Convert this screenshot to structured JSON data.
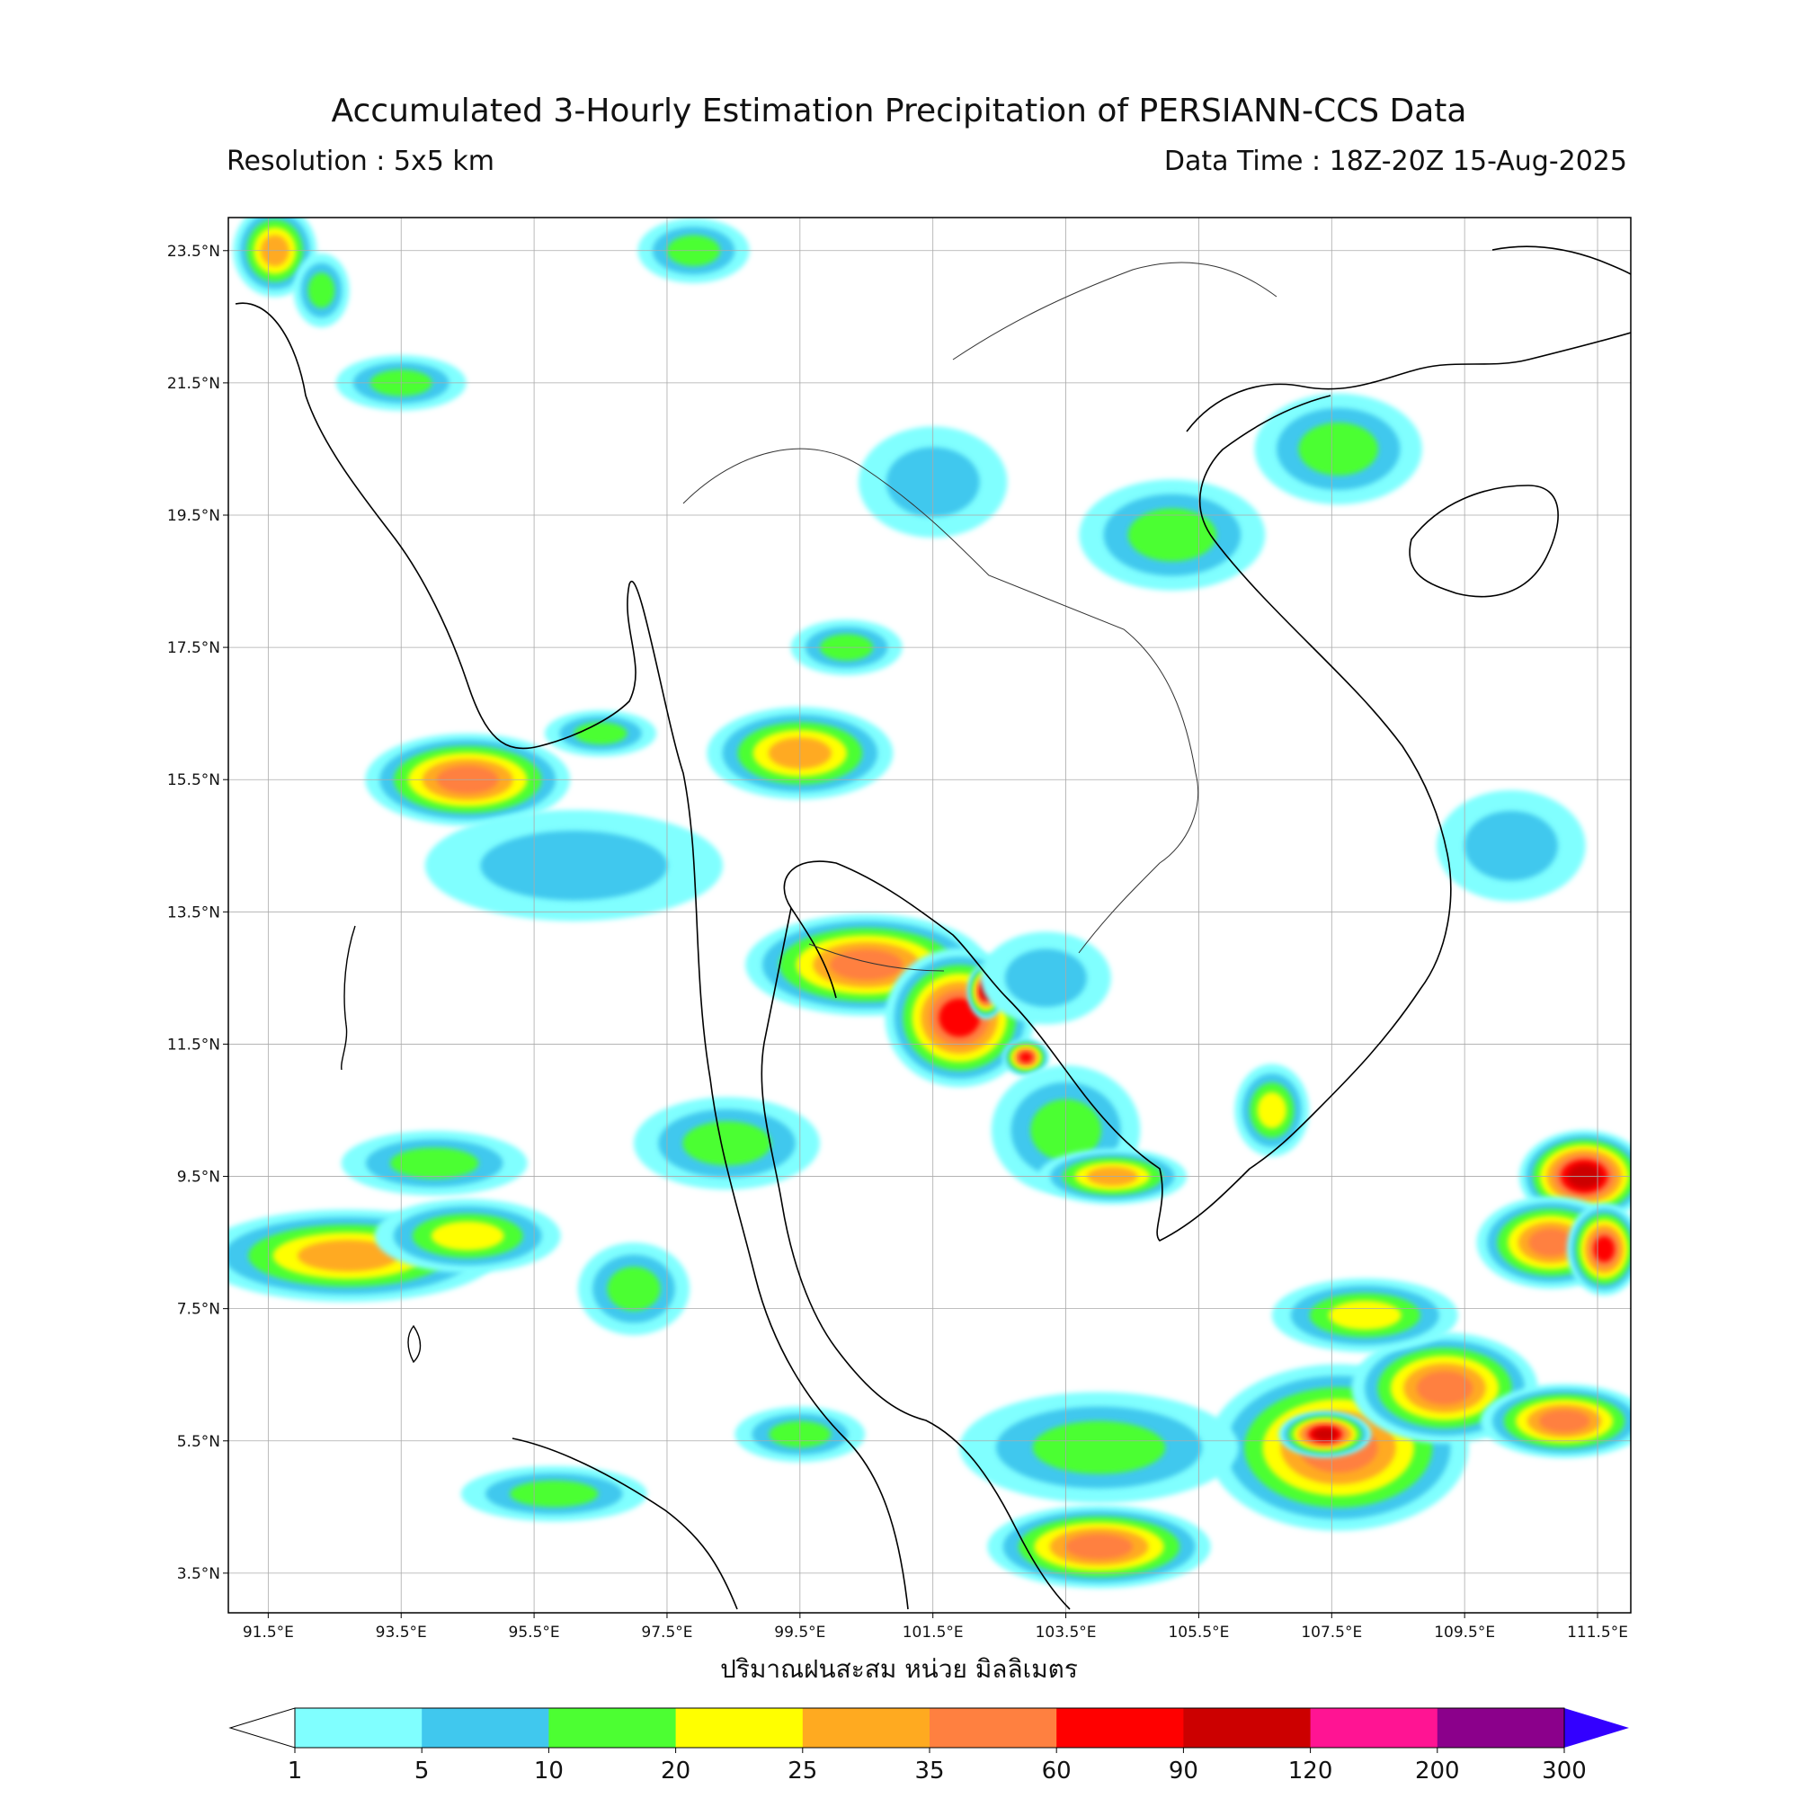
{
  "header": {
    "title": "Accumulated 3-Hourly Estimation Precipitation of PERSIANN-CCS Data",
    "resolution": "Resolution : 5x5 km",
    "data_time": "Data Time : 18Z-20Z 15-Aug-2025"
  },
  "map": {
    "lon_range": [
      90.9,
      112.0
    ],
    "lat_range": [
      2.9,
      24.0
    ],
    "lat_ticks": [
      {
        "value": 23.5,
        "label": "23.5°N"
      },
      {
        "value": 21.5,
        "label": "21.5°N"
      },
      {
        "value": 19.5,
        "label": "19.5°N"
      },
      {
        "value": 17.5,
        "label": "17.5°N"
      },
      {
        "value": 15.5,
        "label": "15.5°N"
      },
      {
        "value": 13.5,
        "label": "13.5°N"
      },
      {
        "value": 11.5,
        "label": "11.5°N"
      },
      {
        "value": 9.5,
        "label": "9.5°N"
      },
      {
        "value": 7.5,
        "label": "7.5°N"
      },
      {
        "value": 5.5,
        "label": "5.5°N"
      },
      {
        "value": 3.5,
        "label": "3.5°N"
      }
    ],
    "lon_ticks": [
      {
        "value": 91.5,
        "label": "91.5°E"
      },
      {
        "value": 93.5,
        "label": "93.5°E"
      },
      {
        "value": 95.5,
        "label": "95.5°E"
      },
      {
        "value": 97.5,
        "label": "97.5°E"
      },
      {
        "value": 99.5,
        "label": "99.5°E"
      },
      {
        "value": 101.5,
        "label": "101.5°E"
      },
      {
        "value": 103.5,
        "label": "103.5°E"
      },
      {
        "value": 105.5,
        "label": "105.5°E"
      },
      {
        "value": 107.5,
        "label": "107.5°E"
      },
      {
        "value": 109.5,
        "label": "109.5°E"
      },
      {
        "value": 111.5,
        "label": "111.5°E"
      }
    ],
    "grid": true
  },
  "x_axis_title": "ปริมาณฝนสะสม หน่วย มิลลิเมตร",
  "colorbar": {
    "levels": [
      "1",
      "5",
      "10",
      "20",
      "25",
      "35",
      "60",
      "90",
      "120",
      "200",
      "300"
    ],
    "colors": [
      "#80ffff",
      "#40c8ee",
      "#4cff32",
      "#ffff00",
      "#ffaa20",
      "#ff8040",
      "#ff0000",
      "#cc0000",
      "#ff1493",
      "#8b008b"
    ],
    "under_color": "#ffffff",
    "over_color": "#3300ff"
  },
  "rain_cells": [
    {
      "lon": 91.6,
      "lat": 23.5,
      "rx": 0.45,
      "ry": 0.5,
      "level": 4
    },
    {
      "lon": 92.3,
      "lat": 22.9,
      "rx": 0.3,
      "ry": 0.4,
      "level": 2
    },
    {
      "lon": 97.9,
      "lat": 23.5,
      "rx": 0.6,
      "ry": 0.35,
      "level": 2
    },
    {
      "lon": 93.5,
      "lat": 21.5,
      "rx": 0.7,
      "ry": 0.3,
      "level": 2
    },
    {
      "lon": 94.5,
      "lat": 15.5,
      "rx": 1.1,
      "ry": 0.5,
      "level": 5
    },
    {
      "lon": 96.5,
      "lat": 16.2,
      "rx": 0.6,
      "ry": 0.25,
      "level": 2
    },
    {
      "lon": 99.5,
      "lat": 15.9,
      "rx": 1.0,
      "ry": 0.5,
      "level": 4
    },
    {
      "lon": 100.5,
      "lat": 12.7,
      "rx": 1.3,
      "ry": 0.55,
      "level": 5
    },
    {
      "lon": 101.9,
      "lat": 11.9,
      "rx": 0.8,
      "ry": 0.75,
      "level": 6
    },
    {
      "lon": 102.3,
      "lat": 12.3,
      "rx": 0.2,
      "ry": 0.3,
      "level": 7
    },
    {
      "lon": 102.9,
      "lat": 11.3,
      "rx": 0.25,
      "ry": 0.2,
      "level": 6
    },
    {
      "lon": 103.2,
      "lat": 12.5,
      "rx": 0.7,
      "ry": 0.5,
      "level": 1
    },
    {
      "lon": 105.1,
      "lat": 19.2,
      "rx": 1.0,
      "ry": 0.6,
      "level": 2
    },
    {
      "lon": 107.6,
      "lat": 20.5,
      "rx": 0.9,
      "ry": 0.6,
      "level": 2
    },
    {
      "lon": 111.3,
      "lat": 9.5,
      "rx": 0.7,
      "ry": 0.5,
      "level": 7
    },
    {
      "lon": 110.8,
      "lat": 8.5,
      "rx": 0.8,
      "ry": 0.5,
      "level": 5
    },
    {
      "lon": 111.6,
      "lat": 8.4,
      "rx": 0.4,
      "ry": 0.5,
      "level": 6
    },
    {
      "lon": 107.6,
      "lat": 5.4,
      "rx": 1.4,
      "ry": 0.9,
      "level": 5
    },
    {
      "lon": 107.4,
      "lat": 5.6,
      "rx": 0.5,
      "ry": 0.25,
      "level": 7
    },
    {
      "lon": 109.2,
      "lat": 6.3,
      "rx": 1.0,
      "ry": 0.6,
      "level": 5
    },
    {
      "lon": 111.0,
      "lat": 5.8,
      "rx": 0.9,
      "ry": 0.4,
      "level": 5
    },
    {
      "lon": 104.0,
      "lat": 3.9,
      "rx": 1.2,
      "ry": 0.45,
      "level": 5
    },
    {
      "lon": 92.7,
      "lat": 8.3,
      "rx": 1.6,
      "ry": 0.5,
      "level": 4
    },
    {
      "lon": 94.5,
      "lat": 8.6,
      "rx": 1.0,
      "ry": 0.4,
      "level": 3
    },
    {
      "lon": 94.0,
      "lat": 9.7,
      "rx": 1.0,
      "ry": 0.35,
      "level": 2
    },
    {
      "lon": 97.0,
      "lat": 7.8,
      "rx": 0.6,
      "ry": 0.5,
      "level": 2
    },
    {
      "lon": 98.4,
      "lat": 10.0,
      "rx": 1.0,
      "ry": 0.5,
      "level": 2
    },
    {
      "lon": 103.5,
      "lat": 10.2,
      "rx": 0.8,
      "ry": 0.7,
      "level": 2
    },
    {
      "lon": 104.2,
      "lat": 9.5,
      "rx": 0.8,
      "ry": 0.3,
      "level": 4
    },
    {
      "lon": 106.6,
      "lat": 10.5,
      "rx": 0.4,
      "ry": 0.5,
      "level": 3
    },
    {
      "lon": 104.0,
      "lat": 5.4,
      "rx": 1.5,
      "ry": 0.6,
      "level": 2
    },
    {
      "lon": 99.5,
      "lat": 5.6,
      "rx": 0.7,
      "ry": 0.3,
      "level": 2
    },
    {
      "lon": 100.2,
      "lat": 17.5,
      "rx": 0.6,
      "ry": 0.3,
      "level": 2
    },
    {
      "lon": 101.5,
      "lat": 20.0,
      "rx": 0.8,
      "ry": 0.6,
      "level": 1
    },
    {
      "lon": 110.2,
      "lat": 14.5,
      "rx": 0.8,
      "ry": 0.6,
      "level": 1
    },
    {
      "lon": 108.0,
      "lat": 7.4,
      "rx": 1.0,
      "ry": 0.4,
      "level": 3
    },
    {
      "lon": 96.1,
      "lat": 14.2,
      "rx": 1.6,
      "ry": 0.6,
      "level": 1
    },
    {
      "lon": 95.8,
      "lat": 4.7,
      "rx": 1.0,
      "ry": 0.3,
      "level": 2
    }
  ]
}
